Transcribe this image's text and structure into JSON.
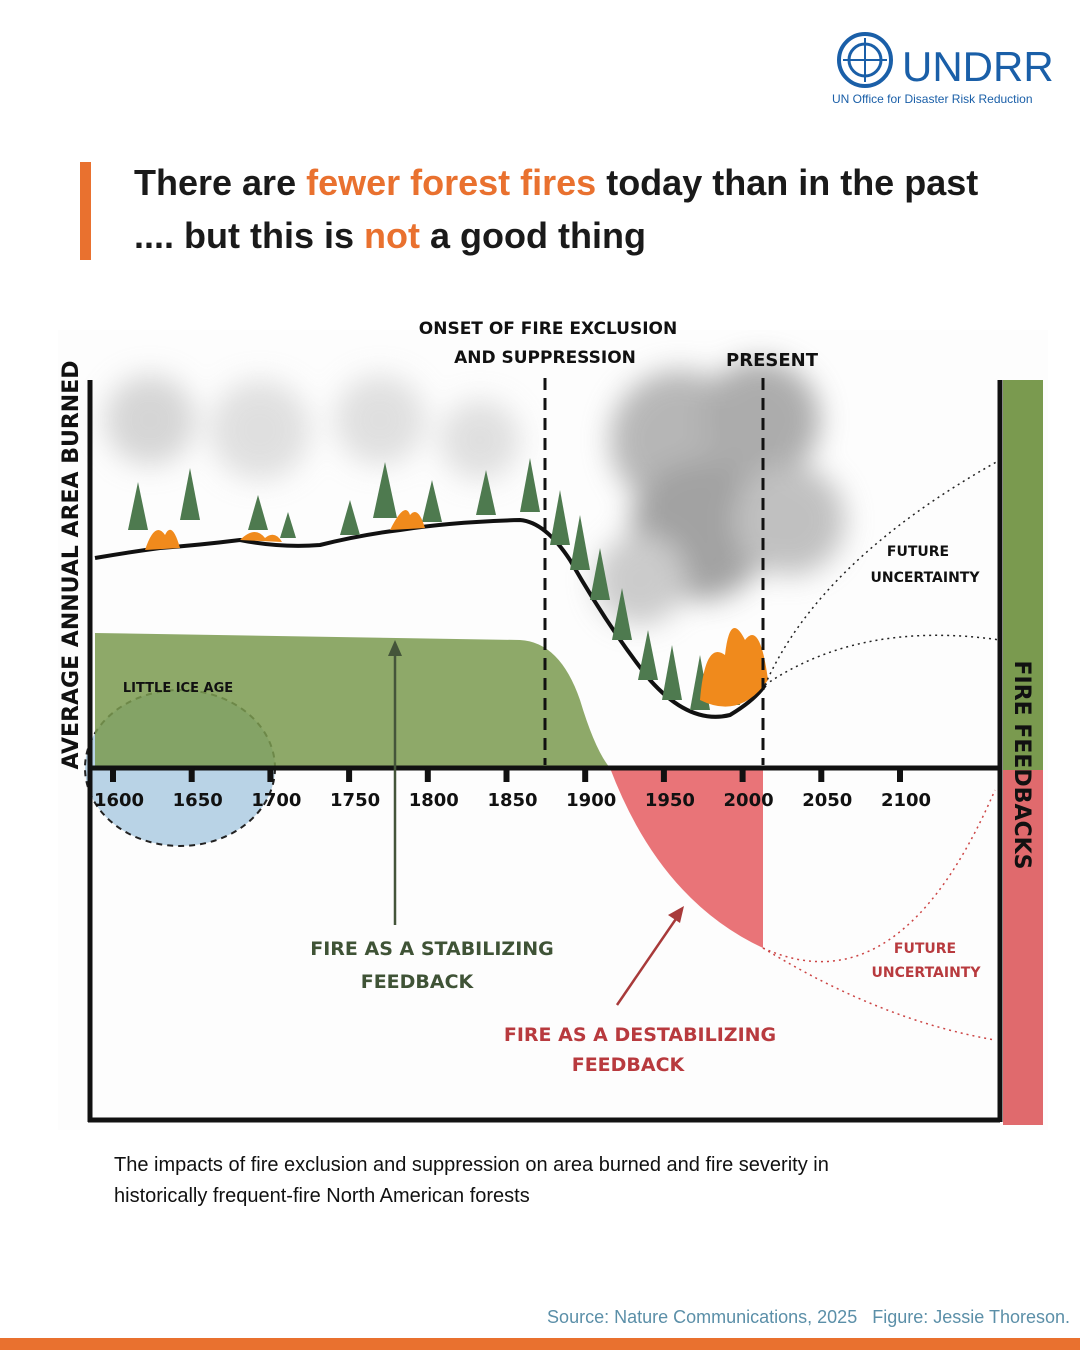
{
  "logo": {
    "name": "UNDRR",
    "subtitle": "UN Office for Disaster Risk Reduction"
  },
  "headline": {
    "line1": [
      "There are ",
      "fewer forest fires",
      " today than in the past"
    ],
    "line2": [
      ".... but this is ",
      "not",
      " a good thing"
    ]
  },
  "figure": {
    "y_axis_label": "AVERAGE ANNUAL AREA BURNED",
    "x_ticks": [
      "1600",
      "1650",
      "1700",
      "1750",
      "1800",
      "1850",
      "1900",
      "1950",
      "2000",
      "2050",
      "2100"
    ],
    "onset_label": [
      "ONSET OF FIRE EXCLUSION",
      "AND SUPPRESSION"
    ],
    "present_label": "PRESENT",
    "little_ice_age": "LITTLE ICE AGE",
    "future_uncertainty_top": [
      "FUTURE",
      "UNCERTAINTY"
    ],
    "future_uncertainty_bottom": [
      "FUTURE",
      "UNCERTAINTY"
    ],
    "stabilizing": [
      "FIRE AS A STABILIZING",
      "FEEDBACK"
    ],
    "destabilizing": [
      "FIRE AS A DESTABILIZING",
      "FEEDBACK"
    ],
    "right_label": "FIRE FEEDBACKS"
  },
  "caption": [
    "The impacts of fire exclusion and suppression on area burned and fire severity in",
    "historically frequent-fire North American forests"
  ],
  "footer": {
    "source": "Source: Nature Communications, 2025",
    "credit": "Figure: Jessie Thoreson."
  }
}
